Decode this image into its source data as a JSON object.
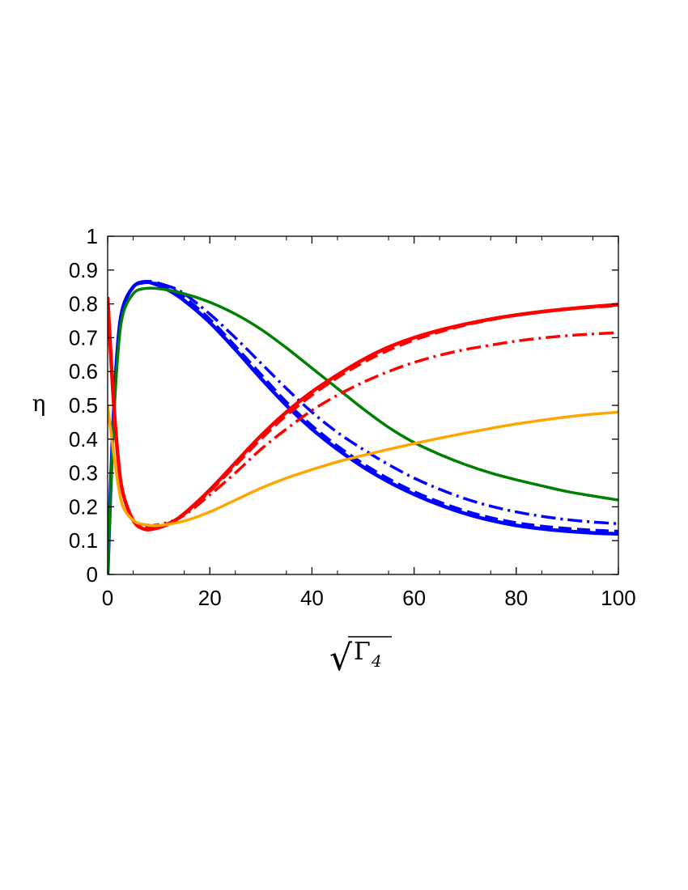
{
  "chart_data": {
    "type": "line",
    "title": "",
    "xlabel": "√Γ4",
    "xlabel_parts": {
      "root": "√",
      "symbol": "Γ",
      "subscript": "4"
    },
    "ylabel": "η",
    "xlim": [
      0,
      100
    ],
    "ylim": [
      0,
      1
    ],
    "xticks": [
      0,
      20,
      40,
      60,
      80,
      100
    ],
    "xtick_labels": [
      "0",
      "20",
      "40",
      "60",
      "80",
      "100"
    ],
    "yticks": [
      0,
      0.1,
      0.2,
      0.3,
      0.4,
      0.5,
      0.6,
      0.7,
      0.8,
      0.9,
      1
    ],
    "ytick_labels": [
      "0",
      "0.1",
      "0.2",
      "0.3",
      "0.4",
      "0.5",
      "0.6",
      "0.7",
      "0.8",
      "0.9",
      "1"
    ],
    "grid": false,
    "legend": "none",
    "series": [
      {
        "color": "#0000ff",
        "style": "solid",
        "width": 4.5,
        "x": [
          0,
          1,
          2,
          3,
          5,
          7,
          9,
          12,
          15,
          20,
          25,
          30,
          35,
          40,
          45,
          50,
          55,
          60,
          65,
          70,
          75,
          80,
          85,
          90,
          95,
          100
        ],
        "y": [
          0,
          0.42,
          0.68,
          0.79,
          0.85,
          0.865,
          0.86,
          0.84,
          0.81,
          0.745,
          0.665,
          0.58,
          0.5,
          0.43,
          0.37,
          0.318,
          0.274,
          0.237,
          0.206,
          0.18,
          0.16,
          0.145,
          0.135,
          0.128,
          0.123,
          0.12
        ]
      },
      {
        "color": "#0000ff",
        "style": "dash",
        "width": 3.5,
        "x": [
          0,
          1,
          2,
          3,
          5,
          7,
          9,
          12,
          15,
          20,
          25,
          30,
          35,
          40,
          45,
          50,
          55,
          60,
          65,
          70,
          75,
          80,
          85,
          90,
          95,
          100
        ],
        "y": [
          0,
          0.42,
          0.68,
          0.79,
          0.85,
          0.865,
          0.865,
          0.85,
          0.82,
          0.755,
          0.675,
          0.592,
          0.51,
          0.44,
          0.38,
          0.328,
          0.283,
          0.245,
          0.214,
          0.188,
          0.168,
          0.153,
          0.143,
          0.136,
          0.131,
          0.128
        ]
      },
      {
        "color": "#0000ff",
        "style": "dashdot",
        "width": 3.5,
        "x": [
          0,
          1,
          2,
          3,
          5,
          7,
          9,
          12,
          15,
          20,
          25,
          30,
          35,
          40,
          45,
          50,
          55,
          60,
          65,
          70,
          75,
          80,
          85,
          90,
          95,
          100
        ],
        "y": [
          0,
          0.42,
          0.68,
          0.79,
          0.85,
          0.862,
          0.862,
          0.852,
          0.83,
          0.77,
          0.7,
          0.625,
          0.55,
          0.48,
          0.42,
          0.37,
          0.325,
          0.285,
          0.252,
          0.224,
          0.202,
          0.185,
          0.172,
          0.162,
          0.155,
          0.15
        ]
      },
      {
        "color": "#008000",
        "style": "solid",
        "width": 3.5,
        "x": [
          0,
          1,
          2,
          3,
          5,
          7,
          10,
          15,
          20,
          25,
          30,
          35,
          40,
          45,
          50,
          55,
          60,
          65,
          70,
          75,
          80,
          85,
          90,
          95,
          100
        ],
        "y": [
          0,
          0.4,
          0.65,
          0.77,
          0.83,
          0.845,
          0.845,
          0.83,
          0.805,
          0.77,
          0.725,
          0.67,
          0.61,
          0.55,
          0.49,
          0.435,
          0.39,
          0.355,
          0.325,
          0.3,
          0.28,
          0.262,
          0.245,
          0.232,
          0.22
        ]
      },
      {
        "color": "#ff0000",
        "style": "solid",
        "width": 4.5,
        "x": [
          0,
          1,
          2,
          3,
          5,
          7,
          9,
          12,
          15,
          20,
          25,
          30,
          35,
          40,
          45,
          50,
          55,
          60,
          65,
          70,
          75,
          80,
          85,
          90,
          95,
          100
        ],
        "y": [
          0.82,
          0.55,
          0.35,
          0.24,
          0.16,
          0.135,
          0.135,
          0.15,
          0.18,
          0.25,
          0.33,
          0.41,
          0.48,
          0.54,
          0.59,
          0.635,
          0.672,
          0.7,
          0.722,
          0.74,
          0.755,
          0.767,
          0.777,
          0.785,
          0.792,
          0.798
        ]
      },
      {
        "color": "#ff0000",
        "style": "dash",
        "width": 3.5,
        "x": [
          0,
          1,
          2,
          3,
          5,
          7,
          9,
          12,
          15,
          20,
          25,
          30,
          35,
          40,
          45,
          50,
          55,
          60,
          65,
          70,
          75,
          80,
          85,
          90,
          95,
          100
        ],
        "y": [
          0.82,
          0.55,
          0.35,
          0.24,
          0.16,
          0.14,
          0.14,
          0.152,
          0.178,
          0.245,
          0.322,
          0.4,
          0.47,
          0.53,
          0.582,
          0.626,
          0.663,
          0.693,
          0.717,
          0.737,
          0.753,
          0.766,
          0.776,
          0.784,
          0.79,
          0.795
        ]
      },
      {
        "color": "#ff0000",
        "style": "dashdot",
        "width": 3.5,
        "x": [
          0,
          1,
          2,
          3,
          5,
          7,
          9,
          12,
          15,
          20,
          25,
          30,
          35,
          40,
          45,
          50,
          55,
          60,
          65,
          70,
          75,
          80,
          85,
          90,
          95,
          100
        ],
        "y": [
          0.82,
          0.55,
          0.35,
          0.24,
          0.16,
          0.14,
          0.145,
          0.155,
          0.175,
          0.235,
          0.3,
          0.37,
          0.43,
          0.485,
          0.53,
          0.568,
          0.6,
          0.627,
          0.648,
          0.665,
          0.678,
          0.69,
          0.699,
          0.706,
          0.711,
          0.715
        ]
      },
      {
        "color": "#ffa500",
        "style": "solid",
        "width": 3.5,
        "x": [
          0,
          1,
          2,
          3,
          5,
          7,
          10,
          15,
          20,
          25,
          30,
          35,
          40,
          45,
          50,
          55,
          60,
          65,
          70,
          75,
          80,
          85,
          90,
          95,
          100
        ],
        "y": [
          0.5,
          0.38,
          0.27,
          0.2,
          0.16,
          0.148,
          0.145,
          0.158,
          0.185,
          0.22,
          0.255,
          0.285,
          0.31,
          0.333,
          0.352,
          0.37,
          0.387,
          0.403,
          0.418,
          0.432,
          0.445,
          0.456,
          0.466,
          0.474,
          0.48
        ]
      }
    ]
  }
}
